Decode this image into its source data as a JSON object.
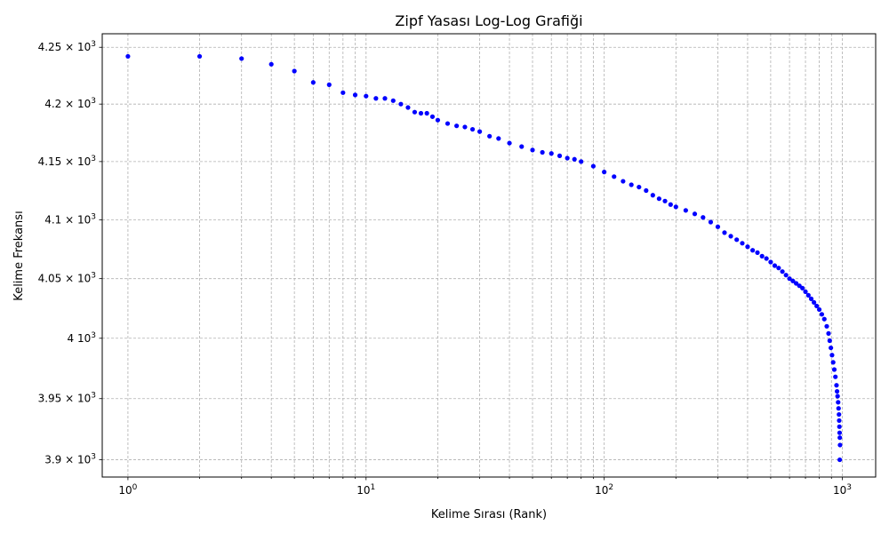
{
  "chart_data": {
    "type": "scatter",
    "title": "Zipf Yasası Log-Log Grafiği",
    "xlabel": "Kelime Sırası (Rank)",
    "ylabel": "Kelime Frekansı",
    "x_scale": "log",
    "y_scale": "log",
    "xlim": [
      0.78,
      1380
    ],
    "ylim": [
      3886,
      4262
    ],
    "grid": true,
    "grid_style": "dashed",
    "marker_color": "#0000ff",
    "x_ticks": [
      {
        "value": 1,
        "base": "10",
        "exp": "0"
      },
      {
        "value": 10,
        "base": "10",
        "exp": "1"
      },
      {
        "value": 100,
        "base": "10",
        "exp": "2"
      },
      {
        "value": 1000,
        "base": "10",
        "exp": "3"
      }
    ],
    "y_ticks": [
      {
        "value": 3900,
        "mant": "3.9",
        "sep": " × ",
        "base": "10",
        "exp": "3"
      },
      {
        "value": 3950,
        "mant": "3.95",
        "sep": " × ",
        "base": "10",
        "exp": "3"
      },
      {
        "value": 4000,
        "mant": "4",
        "sep": " ",
        "base": "10",
        "exp": "3"
      },
      {
        "value": 4050,
        "mant": "4.05",
        "sep": " × ",
        "base": "10",
        "exp": "3"
      },
      {
        "value": 4100,
        "mant": "4.1",
        "sep": " × ",
        "base": "10",
        "exp": "3"
      },
      {
        "value": 4150,
        "mant": "4.15",
        "sep": " × ",
        "base": "10",
        "exp": "3"
      },
      {
        "value": 4200,
        "mant": "4.2",
        "sep": " × ",
        "base": "10",
        "exp": "3"
      },
      {
        "value": 4250,
        "mant": "4.25",
        "sep": " × ",
        "base": "10",
        "exp": "3"
      }
    ],
    "series": [
      {
        "points": [
          [
            1,
            4242
          ],
          [
            2,
            4242
          ],
          [
            3,
            4240
          ],
          [
            4,
            4235
          ],
          [
            5,
            4229
          ],
          [
            6,
            4219
          ],
          [
            7,
            4217
          ],
          [
            8,
            4210
          ],
          [
            9,
            4208
          ],
          [
            10,
            4207
          ],
          [
            11,
            4205
          ],
          [
            12,
            4205
          ],
          [
            13,
            4203
          ],
          [
            14,
            4200
          ],
          [
            15,
            4197
          ],
          [
            16,
            4193
          ],
          [
            17,
            4192
          ],
          [
            18,
            4192
          ],
          [
            19,
            4189
          ],
          [
            20,
            4186
          ],
          [
            22,
            4183
          ],
          [
            24,
            4181
          ],
          [
            26,
            4180
          ],
          [
            28,
            4178
          ],
          [
            30,
            4176
          ],
          [
            33,
            4172
          ],
          [
            36,
            4170
          ],
          [
            40,
            4166
          ],
          [
            45,
            4163
          ],
          [
            50,
            4160
          ],
          [
            55,
            4158
          ],
          [
            60,
            4157
          ],
          [
            65,
            4155
          ],
          [
            70,
            4153
          ],
          [
            75,
            4152
          ],
          [
            80,
            4150
          ],
          [
            90,
            4146
          ],
          [
            100,
            4141
          ],
          [
            110,
            4137
          ],
          [
            120,
            4133
          ],
          [
            130,
            4130
          ],
          [
            140,
            4128
          ],
          [
            150,
            4125
          ],
          [
            160,
            4121
          ],
          [
            170,
            4118
          ],
          [
            180,
            4116
          ],
          [
            190,
            4113
          ],
          [
            200,
            4111
          ],
          [
            220,
            4108
          ],
          [
            240,
            4105
          ],
          [
            260,
            4102
          ],
          [
            280,
            4098
          ],
          [
            300,
            4094
          ],
          [
            320,
            4089
          ],
          [
            340,
            4086
          ],
          [
            360,
            4083
          ],
          [
            380,
            4080
          ],
          [
            400,
            4077
          ],
          [
            420,
            4074
          ],
          [
            440,
            4072
          ],
          [
            460,
            4069
          ],
          [
            480,
            4067
          ],
          [
            500,
            4064
          ],
          [
            520,
            4061
          ],
          [
            540,
            4059
          ],
          [
            560,
            4056
          ],
          [
            580,
            4053
          ],
          [
            600,
            4050
          ],
          [
            620,
            4048
          ],
          [
            640,
            4046
          ],
          [
            660,
            4044
          ],
          [
            680,
            4042
          ],
          [
            700,
            4039
          ],
          [
            720,
            4036
          ],
          [
            740,
            4033
          ],
          [
            760,
            4030
          ],
          [
            780,
            4027
          ],
          [
            800,
            4024
          ],
          [
            820,
            4020
          ],
          [
            840,
            4016
          ],
          [
            860,
            4010
          ],
          [
            875,
            4004
          ],
          [
            885,
            3998
          ],
          [
            895,
            3992
          ],
          [
            905,
            3986
          ],
          [
            915,
            3980
          ],
          [
            925,
            3974
          ],
          [
            935,
            3968
          ],
          [
            945,
            3961
          ],
          [
            950,
            3956
          ],
          [
            955,
            3952
          ],
          [
            960,
            3947
          ],
          [
            964,
            3942
          ],
          [
            968,
            3937
          ],
          [
            970,
            3932
          ],
          [
            972,
            3927
          ],
          [
            974,
            3922
          ],
          [
            976,
            3918
          ],
          [
            978,
            3912
          ],
          [
            975,
            3900
          ]
        ]
      }
    ]
  }
}
